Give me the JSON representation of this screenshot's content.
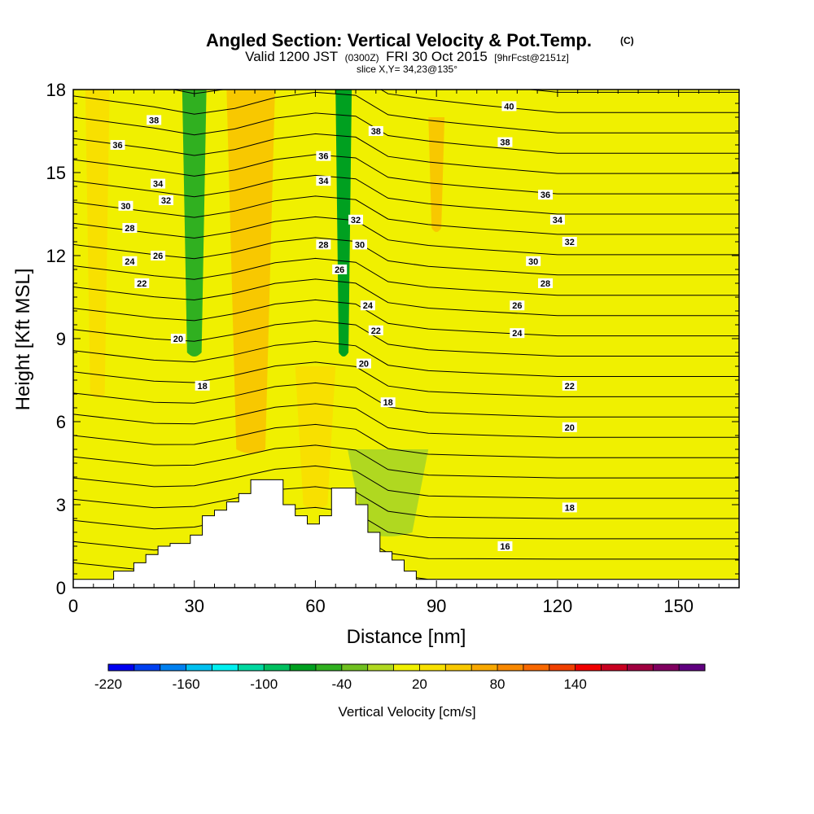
{
  "chart_data": {
    "type": "heatmap",
    "title": "Angled Section: Vertical Velocity & Pot.Temp.",
    "title_unit": "(C)",
    "subtitle_parts": [
      "Valid 1200 JST",
      "(0300Z)",
      "FRI 30 Oct 2015",
      "[9hrFcst@2151z]"
    ],
    "slice_label": "slice X,Y= 34,23@135°",
    "xlabel": "Distance [nm]",
    "ylabel": "Height [Kft MSL]",
    "xlim": [
      0,
      165
    ],
    "ylim": [
      0,
      18
    ],
    "x_ticks": [
      0,
      30,
      60,
      90,
      120,
      150
    ],
    "y_ticks": [
      0,
      3,
      6,
      9,
      12,
      15,
      18
    ],
    "colorbar": {
      "label": "Vertical Velocity [cm/s]",
      "min": -220,
      "step": 20,
      "tick_labels": [
        -220,
        -160,
        -100,
        -40,
        20,
        80,
        140
      ],
      "colors": [
        "#0000f0",
        "#0040f0",
        "#0080f0",
        "#00c0f0",
        "#00f0f0",
        "#00d8a0",
        "#00c060",
        "#00a020",
        "#30b020",
        "#70c020",
        "#b0d820",
        "#f0f000",
        "#f8e000",
        "#f8c800",
        "#f8a800",
        "#f88800",
        "#f86800",
        "#f04000",
        "#f00000",
        "#c80020",
        "#a00040",
        "#800060",
        "#600080"
      ]
    },
    "terrain": [
      [
        0,
        0.3
      ],
      [
        10,
        0.3
      ],
      [
        10,
        0.6
      ],
      [
        15,
        0.6
      ],
      [
        15,
        0.9
      ],
      [
        18,
        0.9
      ],
      [
        18,
        1.2
      ],
      [
        21,
        1.2
      ],
      [
        21,
        1.5
      ],
      [
        24,
        1.5
      ],
      [
        24,
        1.6
      ],
      [
        29,
        1.6
      ],
      [
        29,
        1.9
      ],
      [
        32,
        1.9
      ],
      [
        32,
        2.6
      ],
      [
        35,
        2.6
      ],
      [
        35,
        2.8
      ],
      [
        38,
        2.8
      ],
      [
        38,
        3.1
      ],
      [
        41,
        3.1
      ],
      [
        41,
        3.4
      ],
      [
        44,
        3.4
      ],
      [
        44,
        3.9
      ],
      [
        52,
        3.9
      ],
      [
        52,
        3.0
      ],
      [
        55,
        3.0
      ],
      [
        55,
        2.6
      ],
      [
        58,
        2.6
      ],
      [
        58,
        2.3
      ],
      [
        61,
        2.3
      ],
      [
        61,
        2.6
      ],
      [
        64,
        2.6
      ],
      [
        64,
        3.6
      ],
      [
        70,
        3.6
      ],
      [
        70,
        3.0
      ],
      [
        73,
        3.0
      ],
      [
        73,
        2.0
      ],
      [
        76,
        2.0
      ],
      [
        76,
        1.3
      ],
      [
        79,
        1.3
      ],
      [
        79,
        1.0
      ],
      [
        82,
        1.0
      ],
      [
        82,
        0.6
      ],
      [
        85,
        0.6
      ],
      [
        85,
        0.3
      ],
      [
        165,
        0.3
      ]
    ],
    "isentropes": {
      "thetas": [
        16,
        17,
        18,
        19,
        20,
        21,
        22,
        23,
        24,
        25,
        26,
        27,
        28,
        29,
        30,
        31,
        32,
        33,
        34,
        35,
        36,
        37,
        38,
        39,
        40
      ],
      "anchor_x": [
        0,
        20,
        30,
        40,
        50,
        60,
        70,
        78,
        88,
        100,
        120,
        140,
        165
      ],
      "height_at_theta_16": [
        0.9,
        0.6,
        0.7,
        1.0,
        1.3,
        1.4,
        1.2,
        0.5,
        0.3,
        0.3,
        0.3,
        0.3,
        0.3
      ],
      "height_at_theta_40": [
        19.3,
        18.9,
        18.6,
        18.8,
        19.2,
        19.4,
        19.3,
        18.6,
        18.4,
        18.2,
        17.9,
        17.9,
        17.9
      ]
    },
    "contour_labels": [
      {
        "text": "38",
        "x": 20,
        "y": 16.9
      },
      {
        "text": "36",
        "x": 11,
        "y": 16.0
      },
      {
        "text": "34",
        "x": 21,
        "y": 14.6
      },
      {
        "text": "32",
        "x": 23,
        "y": 14.0
      },
      {
        "text": "30",
        "x": 13,
        "y": 13.8
      },
      {
        "text": "28",
        "x": 14,
        "y": 13.0
      },
      {
        "text": "26",
        "x": 21,
        "y": 12.0
      },
      {
        "text": "24",
        "x": 14,
        "y": 11.8
      },
      {
        "text": "22",
        "x": 17,
        "y": 11.0
      },
      {
        "text": "20",
        "x": 26,
        "y": 9.0
      },
      {
        "text": "18",
        "x": 32,
        "y": 7.3
      },
      {
        "text": "36",
        "x": 62,
        "y": 15.6
      },
      {
        "text": "34",
        "x": 62,
        "y": 14.7
      },
      {
        "text": "38",
        "x": 75,
        "y": 16.5
      },
      {
        "text": "32",
        "x": 70,
        "y": 13.3
      },
      {
        "text": "30",
        "x": 71,
        "y": 12.4
      },
      {
        "text": "28",
        "x": 62,
        "y": 12.4
      },
      {
        "text": "26",
        "x": 66,
        "y": 11.5
      },
      {
        "text": "24",
        "x": 73,
        "y": 10.2
      },
      {
        "text": "22",
        "x": 75,
        "y": 9.3
      },
      {
        "text": "20",
        "x": 72,
        "y": 8.1
      },
      {
        "text": "18",
        "x": 78,
        "y": 6.7
      },
      {
        "text": "40",
        "x": 108,
        "y": 17.4
      },
      {
        "text": "38",
        "x": 107,
        "y": 16.1
      },
      {
        "text": "36",
        "x": 117,
        "y": 14.2
      },
      {
        "text": "34",
        "x": 120,
        "y": 13.3
      },
      {
        "text": "32",
        "x": 123,
        "y": 12.5
      },
      {
        "text": "30",
        "x": 114,
        "y": 11.8
      },
      {
        "text": "28",
        "x": 117,
        "y": 11.0
      },
      {
        "text": "26",
        "x": 110,
        "y": 10.2
      },
      {
        "text": "24",
        "x": 110,
        "y": 9.2
      },
      {
        "text": "22",
        "x": 123,
        "y": 7.3
      },
      {
        "text": "20",
        "x": 123,
        "y": 5.8
      },
      {
        "text": "18",
        "x": 123,
        "y": 2.9
      },
      {
        "text": "16",
        "x": 107,
        "y": 1.5
      }
    ],
    "velocity_features": [
      {
        "x": 43,
        "half_width": 3,
        "y0": 7,
        "y1": 18,
        "value": 90
      },
      {
        "x": 44,
        "half_width": 6,
        "y0": 5,
        "y1": 18,
        "value": 50
      },
      {
        "x": 30,
        "half_width": 3,
        "y0": 8.5,
        "y1": 18,
        "value": -50
      },
      {
        "x": 67,
        "half_width": 2,
        "y0": 8.5,
        "y1": 18,
        "value": -70
      },
      {
        "x": 90,
        "half_width": 2,
        "y0": 13,
        "y1": 17,
        "value": 40
      },
      {
        "x": 6,
        "half_width": 3,
        "y0": 7,
        "y1": 18,
        "value": 30
      },
      {
        "x": 78,
        "half_width": 10,
        "y0": 2,
        "y1": 5,
        "value": -20
      },
      {
        "x": 60,
        "half_width": 5,
        "y0": 3,
        "y1": 8,
        "value": 30
      }
    ]
  }
}
